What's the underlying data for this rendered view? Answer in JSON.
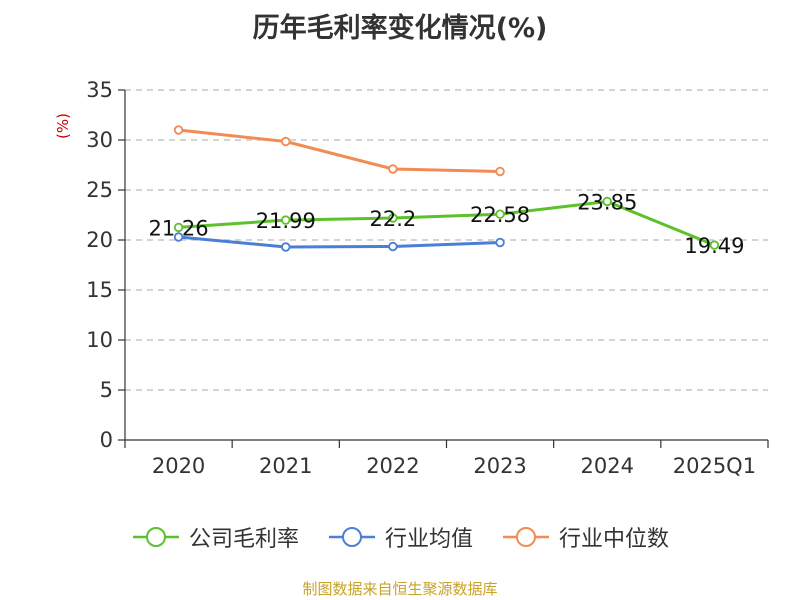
{
  "chart_data": {
    "type": "line",
    "title": "历年毛利率变化情况(%)",
    "ylabel": "(%)",
    "xlabel": "",
    "categories": [
      "2020",
      "2021",
      "2022",
      "2023",
      "2024",
      "2025Q1"
    ],
    "ylim": [
      0,
      35
    ],
    "yticks": [
      0,
      5,
      10,
      15,
      20,
      25,
      30,
      35
    ],
    "grid": true,
    "legend_position": "bottom",
    "series": [
      {
        "name": "公司毛利率",
        "color": "#5cc12a",
        "values": [
          21.26,
          21.99,
          22.2,
          22.58,
          23.85,
          19.49
        ],
        "labels": [
          "21.26",
          "21.99",
          "22.2",
          "22.58",
          "23.85",
          "19.49"
        ]
      },
      {
        "name": "行业均值",
        "color": "#4a7fd6",
        "values": [
          20.3,
          19.3,
          19.35,
          19.75,
          null,
          null
        ]
      },
      {
        "name": "行业中位数",
        "color": "#f28b54",
        "values": [
          31.0,
          29.85,
          27.1,
          26.85,
          null,
          null
        ]
      }
    ]
  },
  "source_note": "制图数据来自恒生聚源数据库"
}
